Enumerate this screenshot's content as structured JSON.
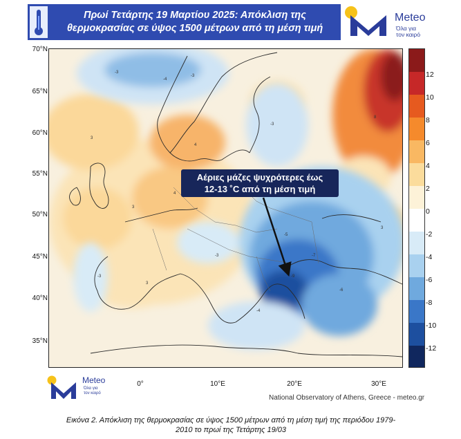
{
  "header": {
    "title_line1": "Πρωί Τετάρτης 19 Μαρτίου 2025: Απόκλιση της",
    "title_line2": "θερμοκρασίας σε ύψος 1500 μέτρων από τη μέση τιμή",
    "icon": "thermometer-icon"
  },
  "logo": {
    "name": "Meteo",
    "tagline_line1": "Όλα για",
    "tagline_line2": "τον καιρό"
  },
  "map": {
    "lat_labels": [
      "70°N",
      "65°N",
      "60°N",
      "55°N",
      "50°N",
      "45°N",
      "40°N",
      "35°N"
    ],
    "lon_labels": [
      "0°",
      "10°E",
      "20°E",
      "30°E"
    ],
    "callout_line1": "Αέριες μάζες ψυχρότερες έως",
    "callout_line2": "12-13 ˚C από τη μέση τιμή",
    "credit": "National Observatory of Athens, Greece - meteo.gr"
  },
  "legend": {
    "ticks": [
      "12",
      "10",
      "8",
      "6",
      "4",
      "2",
      "0",
      "-2",
      "-4",
      "-6",
      "-8",
      "-10",
      "-12"
    ],
    "colors": [
      "#8b1a1a",
      "#c62828",
      "#e65a1f",
      "#f58a2c",
      "#f9b862",
      "#fbdc9c",
      "#fdf2d8",
      "#ffffff",
      "#d8ebf7",
      "#a9d1ef",
      "#6fa9de",
      "#3a77c8",
      "#1d4f9f",
      "#10275e"
    ]
  },
  "caption": {
    "line1": "Εικόνα 2. Απόκλιση της θερμοκρασίας σε ύψος 1500 μέτρων από τη μέση τιμή της περιόδου 1979-",
    "line2": "2010 το πρωί της Τετάρτης 19/03"
  }
}
